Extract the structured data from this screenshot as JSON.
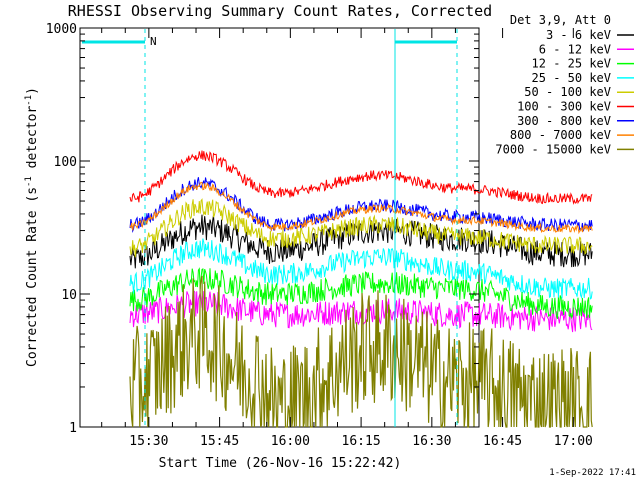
{
  "chart_data": {
    "type": "line",
    "title": "RHESSI Observing Summary Count Rates, Corrected",
    "xlabel": "Start Time (26-Nov-16 15:22:42)",
    "ylabel_main": "Corrected Count Rate (s",
    "ylabel_sup1": "-1",
    "ylabel_mid": " detector",
    "ylabel_sup2": "-1",
    "ylabel_end": ")",
    "yscale": "log",
    "ylim": [
      1,
      1000
    ],
    "y_ticks": [
      "1",
      "10",
      "100",
      "1000"
    ],
    "xlim_minutes": [
      15.4,
      100
    ],
    "x_ticks": [
      {
        "label": "15:30",
        "min": 30
      },
      {
        "label": "15:45",
        "min": 45
      },
      {
        "label": "16:00",
        "min": 60
      },
      {
        "label": "16:15",
        "min": 75
      },
      {
        "label": "16:30",
        "min": 90
      },
      {
        "label": "16:45",
        "min": 105
      },
      {
        "label": "17:00",
        "min": 120
      }
    ],
    "legend_title": "Det 3,9, Att 0",
    "legend_position": "right",
    "series": [
      {
        "name": "3 - 6 keV",
        "color": "#000000",
        "knots": [
          [
            26,
            18
          ],
          [
            41,
            32
          ],
          [
            57,
            21
          ],
          [
            79,
            30
          ],
          [
            96,
            26
          ],
          [
            116,
            20
          ],
          [
            124,
            20
          ]
        ],
        "noise": 0.1
      },
      {
        "name": "6 - 12 keV",
        "color": "#ff00ff",
        "knots": [
          [
            26,
            7
          ],
          [
            41,
            8.5
          ],
          [
            57,
            7
          ],
          [
            79,
            7.5
          ],
          [
            96,
            7
          ],
          [
            116,
            6.5
          ],
          [
            124,
            6.5
          ]
        ],
        "noise": 0.1
      },
      {
        "name": "12 - 25 keV",
        "color": "#00ff00",
        "knots": [
          [
            26,
            9
          ],
          [
            41,
            13
          ],
          [
            57,
            10
          ],
          [
            79,
            12
          ],
          [
            96,
            11
          ],
          [
            116,
            8
          ],
          [
            124,
            8
          ]
        ],
        "noise": 0.09
      },
      {
        "name": "25 - 50 keV",
        "color": "#00ffff",
        "knots": [
          [
            26,
            12
          ],
          [
            41,
            22
          ],
          [
            57,
            14
          ],
          [
            79,
            19
          ],
          [
            96,
            15
          ],
          [
            116,
            11
          ],
          [
            124,
            11
          ]
        ],
        "noise": 0.08
      },
      {
        "name": "50 - 100 keV",
        "color": "#cccc00",
        "knots": [
          [
            26,
            22
          ],
          [
            41,
            45
          ],
          [
            57,
            26
          ],
          [
            79,
            33
          ],
          [
            96,
            27
          ],
          [
            116,
            23
          ],
          [
            124,
            23
          ]
        ],
        "noise": 0.07
      },
      {
        "name": "100 - 300 keV",
        "color": "#ff0000",
        "knots": [
          [
            26,
            52
          ],
          [
            41,
            110
          ],
          [
            57,
            57
          ],
          [
            79,
            78
          ],
          [
            96,
            62
          ],
          [
            116,
            52
          ],
          [
            124,
            52
          ]
        ],
        "noise": 0.04
      },
      {
        "name": "300 - 800 keV",
        "color": "#0000ff",
        "knots": [
          [
            26,
            33
          ],
          [
            41,
            68
          ],
          [
            57,
            33
          ],
          [
            79,
            46
          ],
          [
            96,
            38
          ],
          [
            116,
            33
          ],
          [
            124,
            33
          ]
        ],
        "noise": 0.05
      },
      {
        "name": "800 - 7000 keV",
        "color": "#ff8000",
        "knots": [
          [
            26,
            32
          ],
          [
            41,
            65
          ],
          [
            57,
            32
          ],
          [
            79,
            44
          ],
          [
            96,
            36
          ],
          [
            116,
            31
          ],
          [
            124,
            31
          ]
        ],
        "noise": 0.03
      },
      {
        "name": "7000 - 15000 keV",
        "color": "#808000",
        "knots": [
          [
            26,
            2
          ],
          [
            41,
            5
          ],
          [
            52,
            2.5
          ],
          [
            57,
            1.5
          ],
          [
            79,
            4
          ],
          [
            96,
            2.2
          ],
          [
            116,
            1.5
          ],
          [
            124,
            1.5
          ]
        ],
        "noise": 0.45
      }
    ],
    "annotations": {
      "night_marker_label": "N"
    },
    "footer_timestamp": "1-Sep-2022 17:41"
  }
}
